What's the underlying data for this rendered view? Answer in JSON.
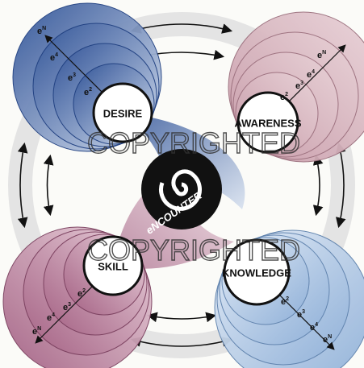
{
  "nodes": [
    {
      "label": "DESIRE",
      "rings": [
        {
          "base": "e",
          "sup": "N"
        },
        {
          "base": "e",
          "sup": "4"
        },
        {
          "base": "e",
          "sup": "3"
        },
        {
          "base": "e",
          "sup": "2"
        }
      ]
    },
    {
      "label": "AWARENESS",
      "rings": [
        {
          "base": "e",
          "sup": "N"
        },
        {
          "base": "e",
          "sup": "4"
        },
        {
          "base": "e",
          "sup": "3"
        },
        {
          "base": "e",
          "sup": "2"
        }
      ]
    },
    {
      "label": "SKILL",
      "rings": [
        {
          "base": "e",
          "sup": "N"
        },
        {
          "base": "e",
          "sup": "4"
        },
        {
          "base": "e",
          "sup": "3"
        },
        {
          "base": "e",
          "sup": "2"
        }
      ]
    },
    {
      "label": "KNOWLEDGE",
      "rings": [
        {
          "base": "e",
          "sup": "N"
        },
        {
          "base": "e",
          "sup": "4"
        },
        {
          "base": "e",
          "sup": "3"
        },
        {
          "base": "e",
          "sup": "2"
        }
      ]
    }
  ],
  "center": {
    "label": "eNCOUNTER"
  },
  "watermarks": [
    "COPYRIGHTED",
    "COPYRIGHTED"
  ]
}
